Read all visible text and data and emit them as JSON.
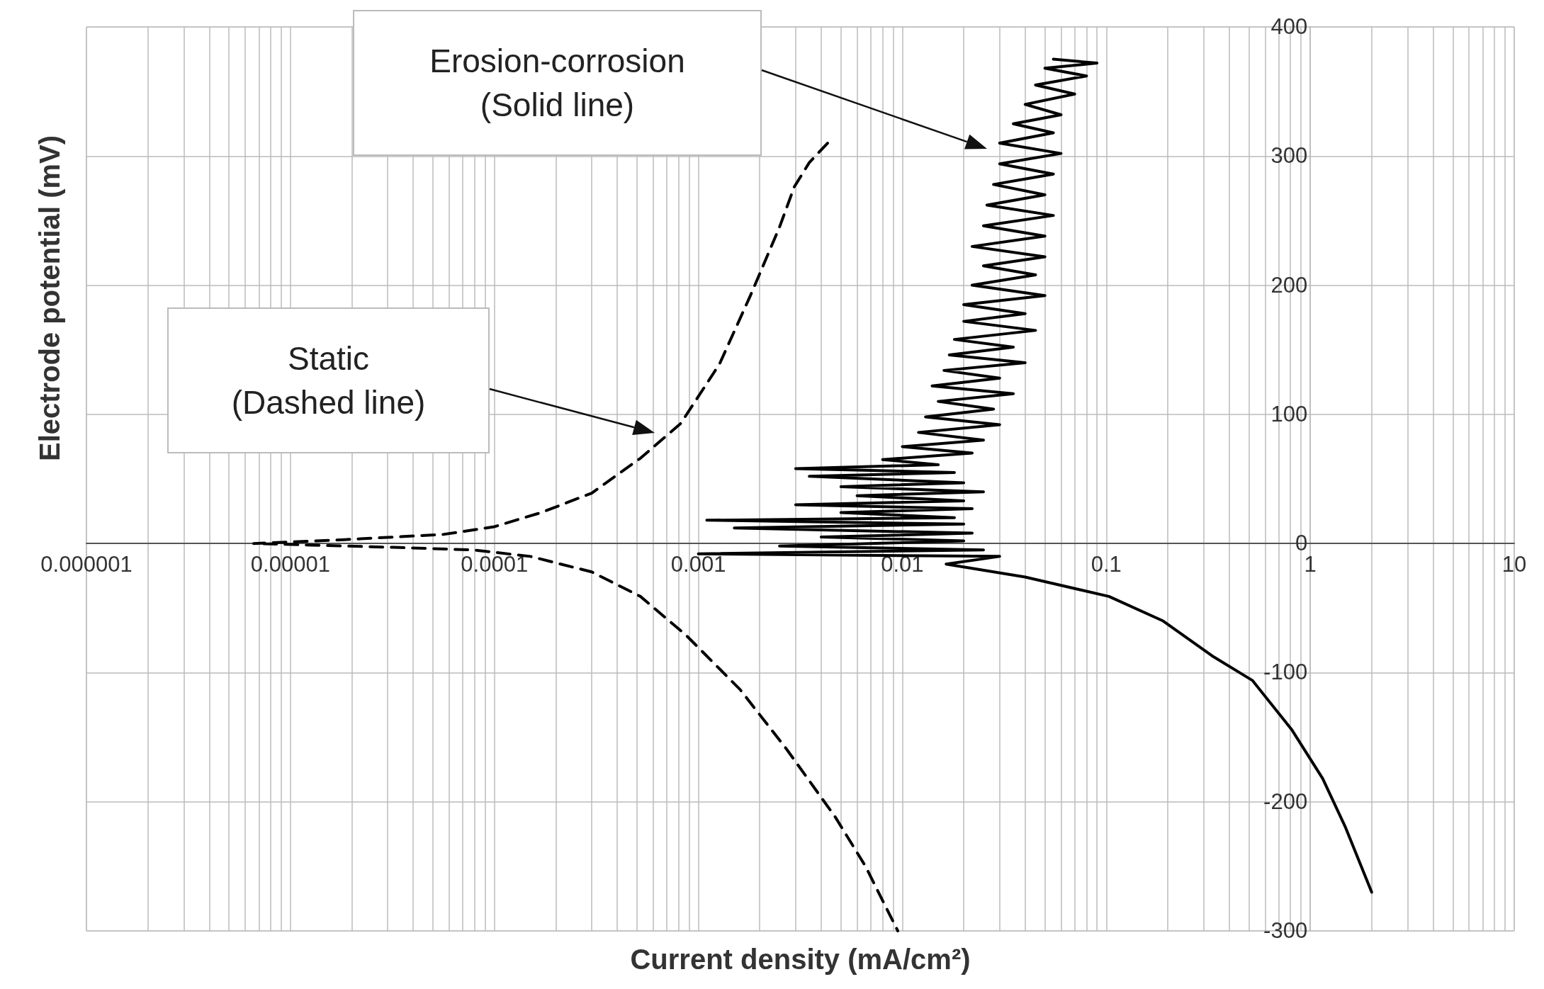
{
  "chart_data": {
    "type": "line",
    "xlabel": "Current density (mA/cm²)",
    "ylabel": "Electrode potential (mV)",
    "log": "x",
    "grid": true,
    "marker": "none",
    "xlim": [
      1e-06,
      10
    ],
    "ylim": [
      -300,
      400
    ],
    "xticks": [
      {
        "value": 1e-06,
        "label": "0.000001"
      },
      {
        "value": 2e-06,
        "label": null
      },
      {
        "value": 3e-06,
        "label": null
      },
      {
        "value": 4e-06,
        "label": null
      },
      {
        "value": 5e-06,
        "label": null
      },
      {
        "value": 6e-06,
        "label": null
      },
      {
        "value": 7e-06,
        "label": null
      },
      {
        "value": 8e-06,
        "label": null
      },
      {
        "value": 9e-06,
        "label": null
      },
      {
        "value": 1e-05,
        "label": "0.00001"
      },
      {
        "value": 2e-05,
        "label": null
      },
      {
        "value": 3e-05,
        "label": null
      },
      {
        "value": 4e-05,
        "label": null
      },
      {
        "value": 5e-05,
        "label": null
      },
      {
        "value": 6e-05,
        "label": null
      },
      {
        "value": 7e-05,
        "label": null
      },
      {
        "value": 8e-05,
        "label": null
      },
      {
        "value": 9e-05,
        "label": null
      },
      {
        "value": 0.0001,
        "label": "0.0001"
      },
      {
        "value": 0.0002,
        "label": null
      },
      {
        "value": 0.0003,
        "label": null
      },
      {
        "value": 0.0004,
        "label": null
      },
      {
        "value": 0.0005,
        "label": null
      },
      {
        "value": 0.0006,
        "label": null
      },
      {
        "value": 0.0007,
        "label": null
      },
      {
        "value": 0.0008,
        "label": null
      },
      {
        "value": 0.0009,
        "label": null
      },
      {
        "value": 0.001,
        "label": "0.001"
      },
      {
        "value": 0.002,
        "label": null
      },
      {
        "value": 0.003,
        "label": null
      },
      {
        "value": 0.004,
        "label": null
      },
      {
        "value": 0.005,
        "label": null
      },
      {
        "value": 0.006,
        "label": null
      },
      {
        "value": 0.007,
        "label": null
      },
      {
        "value": 0.008,
        "label": null
      },
      {
        "value": 0.009,
        "label": null
      },
      0.01,
      {
        "value": 0.02,
        "label": null
      },
      {
        "value": 0.03,
        "label": null
      },
      {
        "value": 0.04,
        "label": null
      },
      {
        "value": 0.05,
        "label": null
      },
      {
        "value": 0.06,
        "label": null
      },
      {
        "value": 0.07,
        "label": null
      },
      {
        "value": 0.08,
        "label": null
      },
      {
        "value": 0.09,
        "label": null
      },
      0.1,
      {
        "value": 0.2,
        "label": null
      },
      {
        "value": 0.3,
        "label": null
      },
      {
        "value": 0.4,
        "label": null
      },
      {
        "value": 0.5,
        "label": null
      },
      {
        "value": 0.6,
        "label": null
      },
      {
        "value": 0.7,
        "label": null
      },
      {
        "value": 0.8,
        "label": null
      },
      {
        "value": 0.9,
        "label": null
      },
      1,
      {
        "value": 2,
        "label": null
      },
      {
        "value": 3,
        "label": null
      },
      {
        "value": 4,
        "label": null
      },
      {
        "value": 5,
        "label": null
      },
      {
        "value": 6,
        "label": null
      },
      {
        "value": 7,
        "label": null
      },
      {
        "value": 8,
        "label": null
      },
      {
        "value": 9,
        "label": null
      },
      10
    ],
    "yticks": [
      -300,
      -200,
      -100,
      0,
      100,
      200,
      300,
      400
    ],
    "annotations": [
      "Erosion-corrosion\n(Solid line)",
      "Static\n(Dashed line)"
    ],
    "series": [
      {
        "color": "#000000",
        "line_style": "solid",
        "x": [
          0.055,
          0.09,
          0.05,
          0.08,
          0.045,
          0.07,
          0.04,
          0.06,
          0.035,
          0.055,
          0.03,
          0.06,
          0.03,
          0.055,
          0.028,
          0.05,
          0.026,
          0.055,
          0.025,
          0.05,
          0.022,
          0.05,
          0.025,
          0.045,
          0.022,
          0.05,
          0.02,
          0.04,
          0.02,
          0.045,
          0.018,
          0.035,
          0.017,
          0.04,
          0.016,
          0.03,
          0.014,
          0.035,
          0.015,
          0.028,
          0.013,
          0.03,
          0.012,
          0.025,
          0.01,
          0.022,
          0.008,
          0.015,
          0.003,
          0.018,
          0.0035,
          0.02,
          0.005,
          0.025,
          0.006,
          0.02,
          0.003,
          0.022,
          0.005,
          0.018,
          0.0011,
          0.02,
          0.0015,
          0.022,
          0.004,
          0.02,
          0.0025,
          0.025,
          0.001,
          0.03,
          0.0164,
          0.04,
          0.103,
          0.19,
          0.33,
          0.52,
          0.81,
          1.15,
          1.49,
          2.0
        ],
        "values": [
          375,
          372,
          368,
          362,
          355,
          348,
          340,
          332,
          325,
          318,
          310,
          302,
          294,
          286,
          278,
          270,
          262,
          254,
          246,
          238,
          230,
          222,
          215,
          208,
          200,
          192,
          185,
          178,
          172,
          165,
          158,
          152,
          146,
          140,
          134,
          128,
          122,
          116,
          110,
          104,
          98,
          92,
          86,
          80,
          75,
          70,
          65,
          61,
          58,
          55,
          52,
          47,
          44,
          40,
          37,
          33,
          30,
          27,
          24,
          20,
          18,
          15,
          12,
          8,
          5,
          2,
          -2,
          -5,
          -8,
          -10,
          -16,
          -26,
          -41,
          -60,
          -87,
          -106,
          -144,
          -182,
          -220,
          -270
        ]
      },
      {
        "color": "#000000",
        "line_style": "dashed",
        "x": [
          0.0043,
          0.0035,
          0.00295,
          0.0025,
          0.0018,
          0.00127,
          0.00082,
          0.00052,
          0.0003,
          0.00017,
          0.0001,
          5.6e-05,
          1.85e-05,
          6.6e-06,
          3.2e-05,
          7.9e-05,
          0.00015,
          0.0003,
          0.00052,
          0.00087,
          0.0016,
          0.0027,
          0.0047,
          0.0066,
          0.0095
        ],
        "values": [
          310,
          295,
          276,
          245,
          192,
          139,
          93,
          66,
          39,
          24,
          13,
          7,
          3,
          0,
          -3,
          -5,
          -10,
          -22,
          -41,
          -71,
          -113,
          -159,
          -212,
          -250,
          -300
        ]
      }
    ]
  }
}
